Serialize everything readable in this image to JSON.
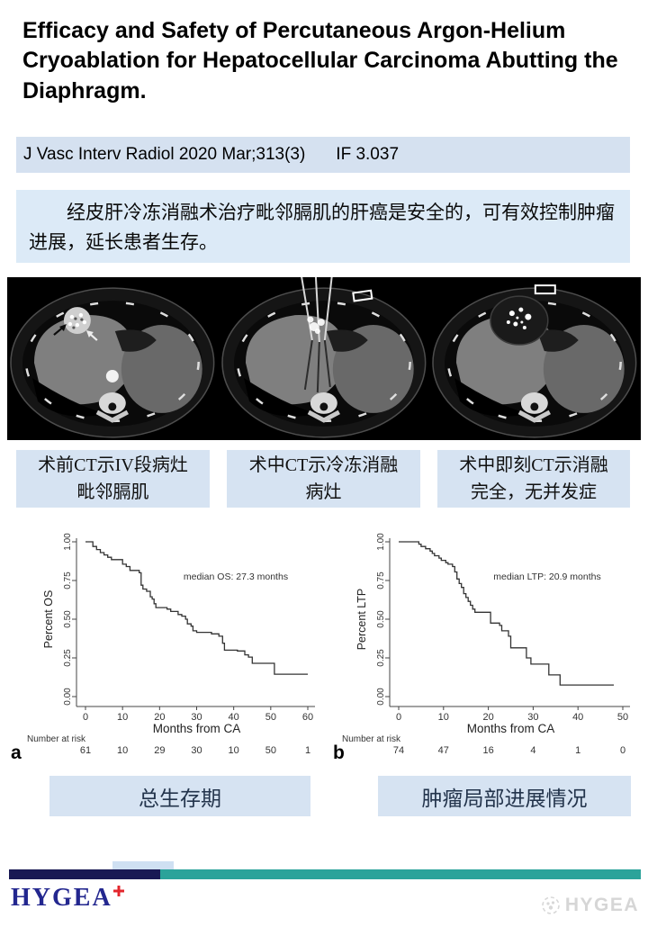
{
  "slide": {
    "title": "Efficacy and Safety of Percutaneous Argon-Helium Cryoablation for Hepatocellular Carcinoma Abutting the Diaphragm.",
    "citation": {
      "journal": "J Vasc Interv Radiol 2020 Mar;313(3)",
      "impact_factor": "IF 3.037"
    },
    "summary": "经皮肝冷冻消融术治疗毗邻膈肌的肝癌是安全的，可有效控制肿瘤进展，延长患者生存。"
  },
  "ct_panels": [
    {
      "caption": "术前CT示IV段病灶\n毗邻膈肌",
      "icon": "ct-axial-preop-image"
    },
    {
      "caption": "术中CT示冷冻消融\n病灶",
      "icon": "ct-axial-cryoprobe-image"
    },
    {
      "caption": "术中即刻CT示消融\n完全，无并发症",
      "icon": "ct-axial-postablation-image"
    }
  ],
  "chart_captions": [
    "总生存期",
    "肿瘤局部进展情况"
  ],
  "chart_data": [
    {
      "type": "line",
      "subtype": "kaplan-meier-step",
      "panel_label": "a",
      "ylabel": "Percent OS",
      "xlabel": "Months from CA",
      "annotation": "median OS: 27.3 months",
      "xlim": [
        0,
        60
      ],
      "ylim": [
        0,
        1
      ],
      "xticks": [
        0,
        10,
        20,
        30,
        40,
        50,
        60
      ],
      "yticks": [
        "0.00",
        "0.25",
        "0.50",
        "0.75",
        "1.00"
      ],
      "grid": false,
      "number_at_risk_label": "Number at risk",
      "number_at_risk": [
        "61",
        "10",
        "29",
        "30",
        "10",
        "50",
        "1"
      ],
      "points": [
        [
          0,
          1
        ],
        [
          2,
          1
        ],
        [
          2,
          0.97
        ],
        [
          3,
          0.97
        ],
        [
          3,
          0.95
        ],
        [
          4,
          0.95
        ],
        [
          4,
          0.93
        ],
        [
          5,
          0.93
        ],
        [
          5,
          0.915
        ],
        [
          6,
          0.915
        ],
        [
          6,
          0.9
        ],
        [
          7,
          0.9
        ],
        [
          7,
          0.885
        ],
        [
          10,
          0.885
        ],
        [
          10,
          0.855
        ],
        [
          11,
          0.855
        ],
        [
          11,
          0.84
        ],
        [
          12,
          0.84
        ],
        [
          12,
          0.815
        ],
        [
          14.5,
          0.815
        ],
        [
          14.5,
          0.8
        ],
        [
          15,
          0.8
        ],
        [
          15,
          0.72
        ],
        [
          15.5,
          0.72
        ],
        [
          15.5,
          0.695
        ],
        [
          16.5,
          0.695
        ],
        [
          16.5,
          0.68
        ],
        [
          17.5,
          0.68
        ],
        [
          17.5,
          0.645
        ],
        [
          18,
          0.645
        ],
        [
          18,
          0.63
        ],
        [
          18.5,
          0.63
        ],
        [
          18.5,
          0.6
        ],
        [
          19,
          0.6
        ],
        [
          19,
          0.575
        ],
        [
          22,
          0.575
        ],
        [
          22,
          0.565
        ],
        [
          23,
          0.565
        ],
        [
          23,
          0.55
        ],
        [
          25,
          0.55
        ],
        [
          25,
          0.53
        ],
        [
          26,
          0.53
        ],
        [
          26,
          0.52
        ],
        [
          27,
          0.52
        ],
        [
          27,
          0.5
        ],
        [
          27.5,
          0.5
        ],
        [
          27.5,
          0.47
        ],
        [
          28.5,
          0.47
        ],
        [
          28.5,
          0.455
        ],
        [
          29,
          0.455
        ],
        [
          29,
          0.425
        ],
        [
          30,
          0.425
        ],
        [
          30,
          0.415
        ],
        [
          34,
          0.415
        ],
        [
          34,
          0.405
        ],
        [
          36,
          0.405
        ],
        [
          36,
          0.39
        ],
        [
          37,
          0.39
        ],
        [
          37,
          0.345
        ],
        [
          37.5,
          0.345
        ],
        [
          37.5,
          0.3
        ],
        [
          41,
          0.3
        ],
        [
          41,
          0.295
        ],
        [
          43,
          0.295
        ],
        [
          43,
          0.27
        ],
        [
          44,
          0.27
        ],
        [
          44,
          0.255
        ],
        [
          45,
          0.255
        ],
        [
          45,
          0.215
        ],
        [
          51,
          0.215
        ],
        [
          51,
          0.145
        ],
        [
          60,
          0.145
        ]
      ]
    },
    {
      "type": "line",
      "subtype": "kaplan-meier-step",
      "panel_label": "b",
      "ylabel": "Percent LTP",
      "xlabel": "Months from CA",
      "annotation": "median LTP: 20.9 months",
      "xlim": [
        0,
        50
      ],
      "ylim": [
        0,
        1
      ],
      "xticks": [
        0,
        10,
        20,
        30,
        40,
        50
      ],
      "yticks": [
        "0.00",
        "0.25",
        "0.50",
        "0.75",
        "1.00"
      ],
      "grid": false,
      "number_at_risk_label": "Number at risk",
      "number_at_risk": [
        "74",
        "47",
        "16",
        "4",
        "1",
        "0"
      ],
      "points": [
        [
          0,
          1
        ],
        [
          4.5,
          1
        ],
        [
          4.5,
          0.985
        ],
        [
          5,
          0.985
        ],
        [
          5,
          0.97
        ],
        [
          6,
          0.97
        ],
        [
          6,
          0.955
        ],
        [
          7,
          0.955
        ],
        [
          7,
          0.94
        ],
        [
          7.5,
          0.94
        ],
        [
          7.5,
          0.925
        ],
        [
          8,
          0.925
        ],
        [
          8,
          0.91
        ],
        [
          9,
          0.91
        ],
        [
          9,
          0.895
        ],
        [
          9.5,
          0.895
        ],
        [
          9.5,
          0.88
        ],
        [
          10.5,
          0.88
        ],
        [
          10.5,
          0.865
        ],
        [
          11,
          0.865
        ],
        [
          11,
          0.855
        ],
        [
          12,
          0.855
        ],
        [
          12,
          0.84
        ],
        [
          12.5,
          0.84
        ],
        [
          12.5,
          0.805
        ],
        [
          13,
          0.805
        ],
        [
          13,
          0.76
        ],
        [
          13.5,
          0.76
        ],
        [
          13.5,
          0.73
        ],
        [
          14,
          0.73
        ],
        [
          14,
          0.705
        ],
        [
          14.5,
          0.705
        ],
        [
          14.5,
          0.665
        ],
        [
          15,
          0.665
        ],
        [
          15,
          0.64
        ],
        [
          15.5,
          0.64
        ],
        [
          15.5,
          0.615
        ],
        [
          16,
          0.615
        ],
        [
          16,
          0.59
        ],
        [
          16.5,
          0.59
        ],
        [
          16.5,
          0.565
        ],
        [
          17,
          0.565
        ],
        [
          17,
          0.545
        ],
        [
          20.5,
          0.545
        ],
        [
          20.5,
          0.475
        ],
        [
          22.5,
          0.475
        ],
        [
          22.5,
          0.46
        ],
        [
          23,
          0.46
        ],
        [
          23,
          0.425
        ],
        [
          24.5,
          0.425
        ],
        [
          24.5,
          0.39
        ],
        [
          25,
          0.39
        ],
        [
          25,
          0.315
        ],
        [
          28.5,
          0.315
        ],
        [
          28.5,
          0.25
        ],
        [
          29.5,
          0.25
        ],
        [
          29.5,
          0.21
        ],
        [
          33.5,
          0.21
        ],
        [
          33.5,
          0.14
        ],
        [
          36,
          0.14
        ],
        [
          36,
          0.075
        ],
        [
          48,
          0.075
        ]
      ]
    }
  ],
  "footer": {
    "logo_text": "HYGEA",
    "watermark_text": "HYGEA"
  },
  "colors": {
    "box_blue": "#d6e3f2",
    "summary_blue": "#dceaf7",
    "footer_navy": "#191954",
    "footer_teal": "#2ba39a",
    "logo_navy": "#23278f",
    "logo_red": "#e3262c",
    "curve": "#333333"
  }
}
